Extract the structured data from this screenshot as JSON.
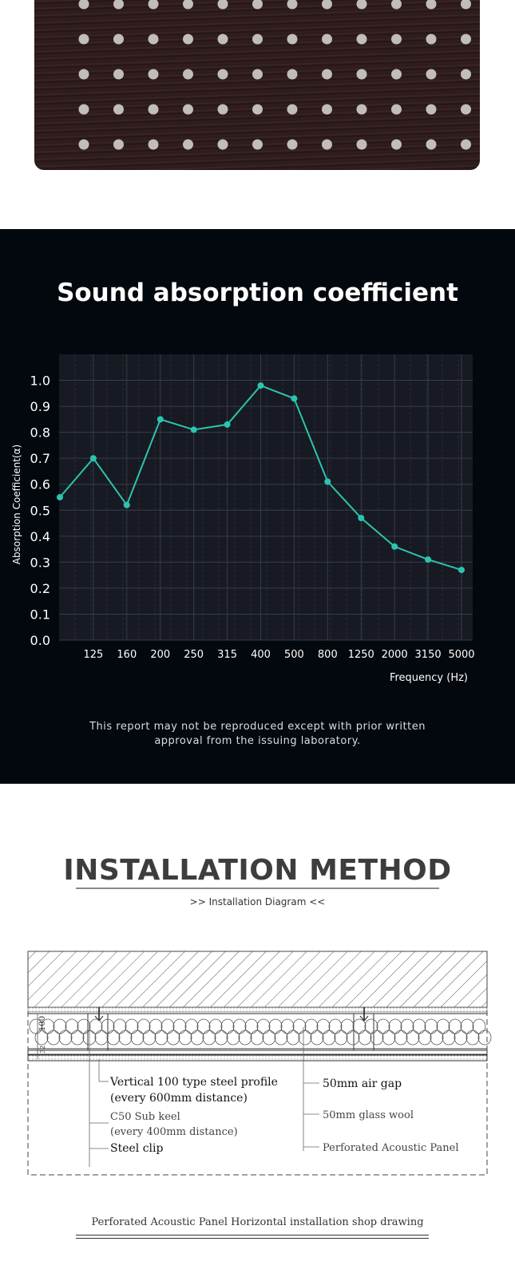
{
  "chart_section": {
    "title": "Sound absorption coefficient",
    "note_line1": "This report may not be reproduced except with prior written",
    "note_line2": "approval from the issuing laboratory."
  },
  "chart_data": {
    "type": "line",
    "title": "Sound absorption coefficient",
    "xlabel": "Frequency (Hz)",
    "ylabel": "Absorption Coefficient(α)",
    "categories": [
      "",
      "125",
      "160",
      "200",
      "250",
      "315",
      "400",
      "500",
      "800",
      "1250",
      "2000",
      "3150",
      "5000"
    ],
    "y_ticks": [
      "0.0",
      "0.1",
      "0.2",
      "0.3",
      "0.4",
      "0.5",
      "0.6",
      "0.7",
      "0.8",
      "0.9",
      "1.0"
    ],
    "ylim": [
      0,
      1.1
    ],
    "series": [
      {
        "values": [
          0.55,
          0.7,
          0.52,
          0.85,
          0.81,
          0.83,
          0.98,
          0.93,
          0.61,
          0.47,
          0.36,
          0.31,
          0.27
        ]
      }
    ],
    "grid": true,
    "colors": {
      "line": "#2cc4b0",
      "plot_bg": "#171a22",
      "grid": "#383c45",
      "text": "#ffffff"
    }
  },
  "installation": {
    "title": "INSTALLATION METHOD",
    "subtitle": ">>  Installation Diagram <<",
    "dim_100": "100",
    "dim_32": "32",
    "labels": {
      "vertical_profile": "Vertical 100 type steel profile",
      "vertical_profile_spacing": "(every 600mm distance)",
      "sub_keel": "C50 Sub keel",
      "sub_keel_spacing": "(every 400mm distance)",
      "steel_clip": "Steel clip",
      "air_gap": "50mm air gap",
      "glass_wool": "50mm glass wool",
      "panel": "Perforated Acoustic Panel"
    },
    "caption": "Perforated Acoustic Panel Horizontal installation shop drawing"
  }
}
